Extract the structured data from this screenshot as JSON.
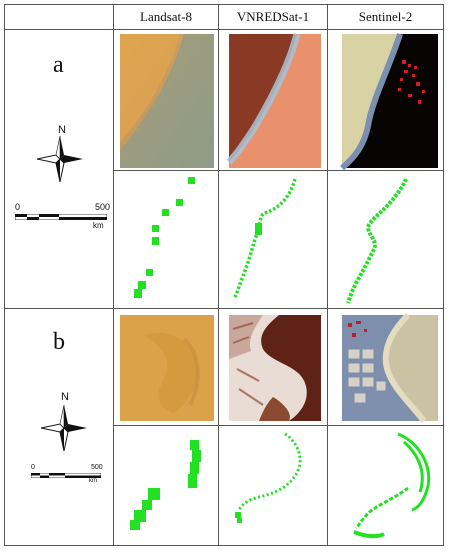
{
  "headers": [
    "Landsat-8",
    "VNREDSat-1",
    "Sentinel-2"
  ],
  "rows": [
    {
      "label": "a",
      "north": "N",
      "scale_start": "0",
      "scale_end": "500",
      "scale_unit": "km"
    },
    {
      "label": "b",
      "north": "N",
      "scale_start": "0",
      "scale_end": "500",
      "scale_unit": "km"
    }
  ],
  "colors": {
    "shoreline": "#22e022",
    "border": "#555555"
  }
}
